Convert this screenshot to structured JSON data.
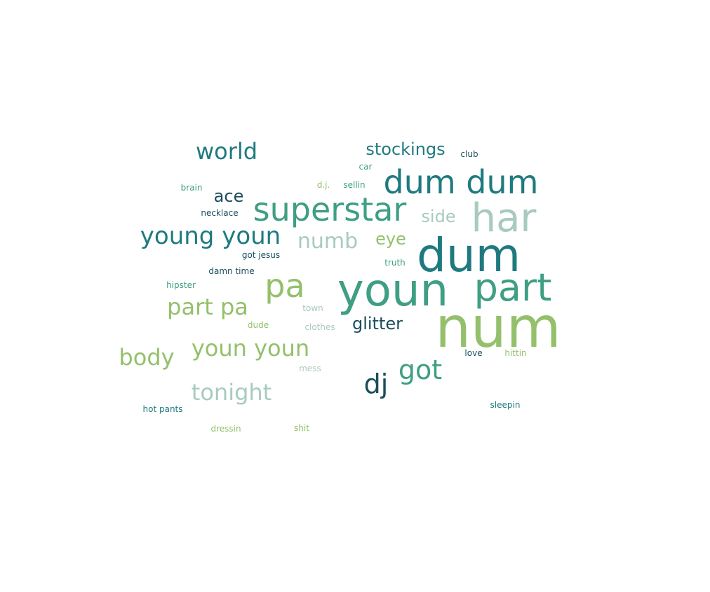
{
  "palette": {
    "dark_navy": "#1b4d5c",
    "teal": "#1f7a80",
    "mid_green": "#3f9e84",
    "light_sage": "#a8cbbd",
    "lime_green": "#94c06b"
  },
  "words": [
    {
      "text": "num",
      "color": "#94c06b"
    },
    {
      "text": "dum",
      "color": "#1f7a80"
    },
    {
      "text": "youn",
      "color": "#3f9e84"
    },
    {
      "text": "har",
      "color": "#a8cbbd"
    },
    {
      "text": "part",
      "color": "#3f9e84"
    },
    {
      "text": "dum dum",
      "color": "#1f7a80"
    },
    {
      "text": "superstar",
      "color": "#3f9e84"
    },
    {
      "text": "pa",
      "color": "#94c06b"
    },
    {
      "text": "young youn",
      "color": "#1f7a80"
    },
    {
      "text": "youn youn",
      "color": "#94c06b"
    },
    {
      "text": "got",
      "color": "#3f9e84"
    },
    {
      "text": "dj",
      "color": "#1b4d5c"
    },
    {
      "text": "part pa",
      "color": "#94c06b"
    },
    {
      "text": "tonight",
      "color": "#a8cbbd"
    },
    {
      "text": "body",
      "color": "#94c06b"
    },
    {
      "text": "world",
      "color": "#1f7a80"
    },
    {
      "text": "numb",
      "color": "#a8cbbd"
    },
    {
      "text": "stockings",
      "color": "#1f7a80"
    },
    {
      "text": "glitter",
      "color": "#1b4d5c"
    },
    {
      "text": "ace",
      "color": "#1b4d5c"
    },
    {
      "text": "side",
      "color": "#a8cbbd"
    },
    {
      "text": "eye",
      "color": "#94c06b"
    },
    {
      "text": "club",
      "color": "#1b4d5c"
    },
    {
      "text": "car",
      "color": "#3f9e84"
    },
    {
      "text": "brain",
      "color": "#3f9e84"
    },
    {
      "text": "d.j.",
      "color": "#94c06b"
    },
    {
      "text": "sellin",
      "color": "#3f9e84"
    },
    {
      "text": "necklace",
      "color": "#1b4d5c"
    },
    {
      "text": "got jesus",
      "color": "#1b4d5c"
    },
    {
      "text": "truth",
      "color": "#3f9e84"
    },
    {
      "text": "damn time",
      "color": "#1b4d5c"
    },
    {
      "text": "hipster",
      "color": "#3f9e84"
    },
    {
      "text": "town",
      "color": "#a8cbbd"
    },
    {
      "text": "dude",
      "color": "#94c06b"
    },
    {
      "text": "clothes",
      "color": "#a8cbbd"
    },
    {
      "text": "love",
      "color": "#1b4d5c"
    },
    {
      "text": "hittin",
      "color": "#94c06b"
    },
    {
      "text": "mess",
      "color": "#a8cbbd"
    },
    {
      "text": "hot pants",
      "color": "#1f7a80"
    },
    {
      "text": "sleepin",
      "color": "#1f7a80"
    },
    {
      "text": "dressin",
      "color": "#94c06b"
    },
    {
      "text": "shit",
      "color": "#94c06b"
    }
  ]
}
